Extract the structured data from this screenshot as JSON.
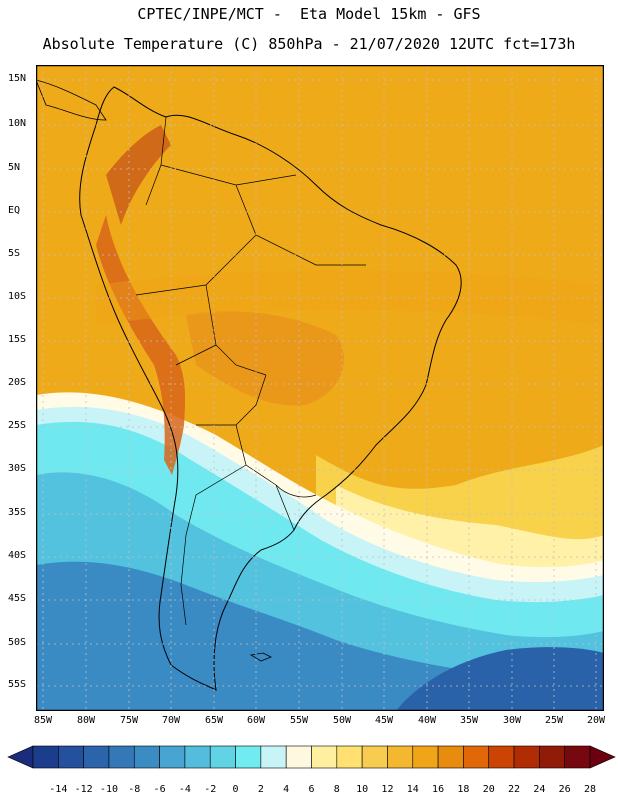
{
  "header": {
    "line1": "CPTEC/INPE/MCT -  Eta Model 15km - GFS",
    "line2": "Absolute Temperature (C) 850hPa - 21/07/2020 12UTC fct=173h"
  },
  "axes": {
    "lat_labels": [
      "15N",
      "10N",
      "5N",
      "EQ",
      "5S",
      "10S",
      "15S",
      "20S",
      "25S",
      "30S",
      "35S",
      "40S",
      "45S",
      "50S",
      "55S"
    ],
    "lon_labels": [
      "85W",
      "80W",
      "75W",
      "70W",
      "65W",
      "60W",
      "55W",
      "50W",
      "45W",
      "40W",
      "35W",
      "30W",
      "25W",
      "20W"
    ]
  },
  "colorbar": {
    "labels": [
      "-14",
      "-12",
      "-10",
      "-8",
      "-6",
      "-4",
      "-2",
      "0",
      "2",
      "4",
      "6",
      "8",
      "10",
      "12",
      "14",
      "16",
      "18",
      "20",
      "22",
      "24",
      "26",
      "28"
    ],
    "colors": [
      "#1c3c8c",
      "#24509e",
      "#2c64ac",
      "#3478b8",
      "#3c8cc4",
      "#48a4d0",
      "#54bcdc",
      "#60d4e4",
      "#70ecf0",
      "#c8f4f8",
      "#fff8e0",
      "#fff0a0",
      "#ffe070",
      "#f8cc50",
      "#f4b830",
      "#f0a418",
      "#e88c10",
      "#e06808",
      "#cc4404",
      "#b02c04",
      "#901c08",
      "#780810"
    ],
    "low_color": "#1c2c7c",
    "high_color": "#6c0010"
  },
  "map": {
    "bands": [
      {
        "id": "band-n",
        "color": "#efaa1a"
      },
      {
        "id": "band-s1",
        "color": "#f7d24a"
      },
      {
        "id": "band-s2",
        "color": "#fff1a8"
      },
      {
        "id": "band-s3",
        "color": "#fffbe6"
      },
      {
        "id": "band-s4",
        "color": "#c8f4f8"
      },
      {
        "id": "band-s5",
        "color": "#6fe8ef"
      },
      {
        "id": "band-s6",
        "color": "#52c2de"
      },
      {
        "id": "band-s7",
        "color": "#3a8ac4"
      },
      {
        "id": "band-s8",
        "color": "#2a62aa"
      }
    ],
    "graticule_color": "#c0c0c0",
    "coast_color": "#000000"
  }
}
